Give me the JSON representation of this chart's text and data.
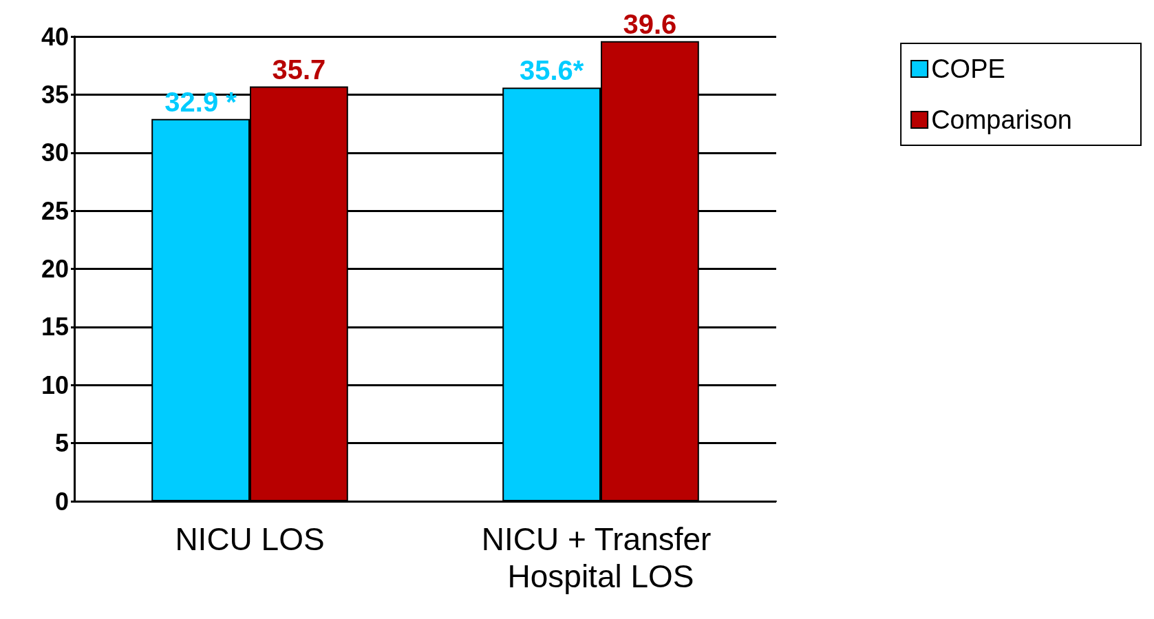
{
  "chart_data": {
    "type": "bar",
    "categories": [
      "NICU LOS",
      "NICU + Transfer Hospital LOS"
    ],
    "series": [
      {
        "name": "COPE",
        "color": "#00ccff",
        "values": [
          32.9,
          35.6
        ],
        "value_labels": [
          "32.9 *",
          "35.6*"
        ]
      },
      {
        "name": "Comparison",
        "color": "#b80000",
        "values": [
          35.7,
          39.6
        ],
        "value_labels": [
          "35.7",
          "39.6"
        ]
      }
    ],
    "ylim": [
      0,
      40
    ],
    "yticks": [
      0,
      5,
      10,
      15,
      20,
      25,
      30,
      35,
      40
    ],
    "grid": "y",
    "legend": "top right"
  }
}
